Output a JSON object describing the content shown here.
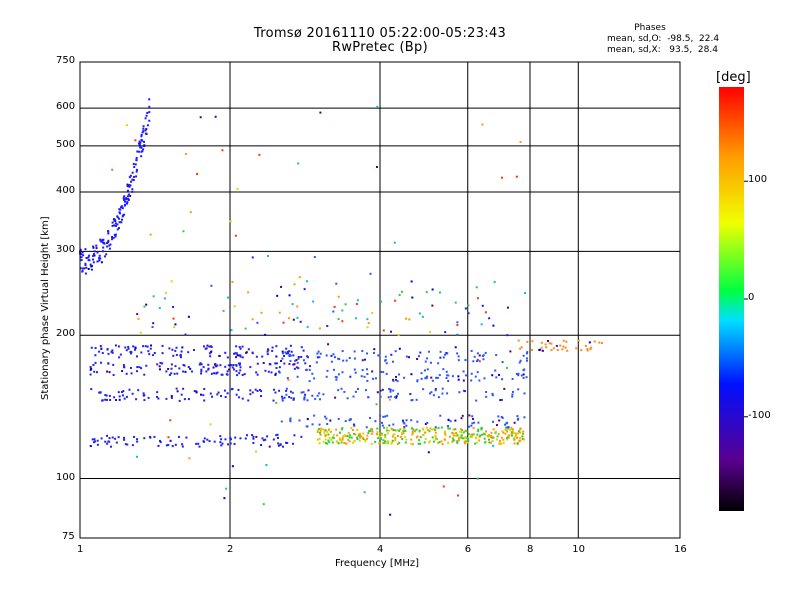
{
  "chart_data": {
    "type": "scatter",
    "title": "Tromsø 20161110 05:22:00-05:23:43",
    "subtitle": "RwPretec (Bp)",
    "xlabel": "Frequency [MHz]",
    "ylabel": "Stationary phase Virtual Height [km]",
    "x_scale": "log",
    "y_scale": "log",
    "xlim": [
      1,
      16
    ],
    "ylim": [
      75,
      750
    ],
    "x_ticks": [
      "1",
      "2",
      "4",
      "6",
      "8",
      "10",
      "16"
    ],
    "y_ticks": [
      "750",
      "600",
      "500",
      "400",
      "300",
      "200",
      "100",
      "75"
    ],
    "grid": true,
    "phase_stats": {
      "heading": "Phases",
      "line_o": "mean, sd,O:  -98.5,  22.4",
      "line_x": "mean, sd,X:   93.5,  28.4"
    },
    "colorbar": {
      "unit": "[deg]",
      "range": [
        -180,
        180
      ],
      "ticks": [
        "100",
        "0",
        "-100"
      ],
      "colormap": "rainbow (black-purple-blue-cyan-green-yellow-orange-red)"
    },
    "series": [
      {
        "cluster": "low-freq F trace",
        "color": "#1a1aff",
        "count": 180,
        "x_range": [
          1.0,
          1.38
        ],
        "y_range": [
          285,
          600
        ]
      },
      {
        "cluster": "E-layer echoes",
        "color": "#2222ee",
        "count": 420,
        "x_range": [
          1.05,
          2.9
        ],
        "y_range": [
          118,
          195
        ]
      },
      {
        "cluster": "Es multi-colour band",
        "color": "#e0d400",
        "count": 380,
        "x_range": [
          3.0,
          7.8
        ],
        "y_range": [
          118,
          128
        ]
      },
      {
        "cluster": "mid-height echoes",
        "color": "#2a55ff",
        "count": 320,
        "x_range": [
          2.5,
          7.9
        ],
        "y_range": [
          130,
          195
        ]
      },
      {
        "cluster": "upper scatter",
        "color": "#00bfe6",
        "count": 90,
        "x_range": [
          1.2,
          8.0
        ],
        "y_range": [
          200,
          260
        ]
      },
      {
        "cluster": "high-freq tail",
        "color": "#ff8c1a",
        "count": 40,
        "x_range": [
          7.5,
          11.5
        ],
        "y_range": [
          185,
          195
        ]
      },
      {
        "cluster": "sparse outliers",
        "color": "#ff9900",
        "count": 70,
        "x_range": [
          1.0,
          8.0
        ],
        "y_range": [
          80,
          640
        ]
      }
    ]
  }
}
